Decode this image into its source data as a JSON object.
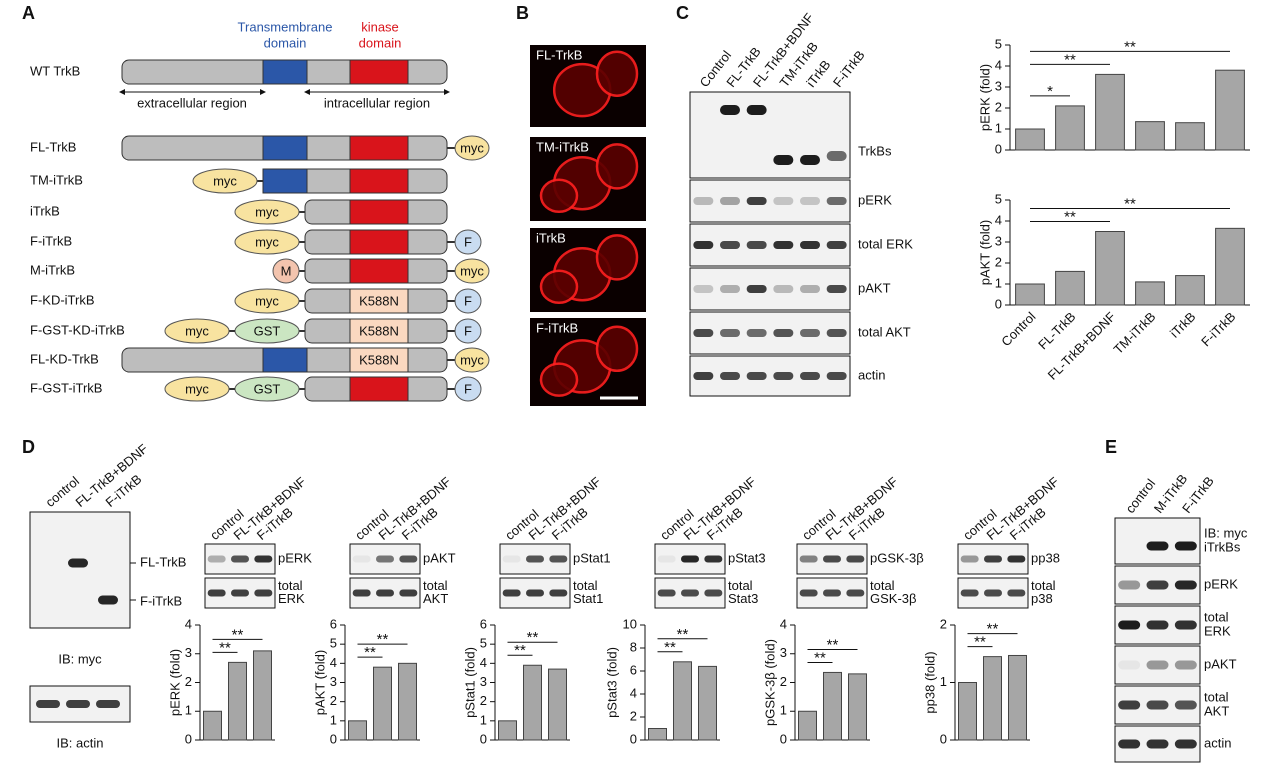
{
  "panel_labels": [
    "A",
    "B",
    "C",
    "D",
    "E"
  ],
  "diagram": {
    "tm_label": [
      "Transmembrane",
      "domain"
    ],
    "kinase_label": [
      "kinase",
      "domain"
    ],
    "wt": "WT TrkB",
    "extracellular": "extracellular region",
    "intracellular": "intracellular region",
    "constructs": [
      {
        "name": "FL-TrkB",
        "right": "myc"
      },
      {
        "name": "TM-iTrkB",
        "left": [
          "myc"
        ]
      },
      {
        "name": "iTrkB",
        "left": [
          "myc"
        ]
      },
      {
        "name": "F-iTrkB",
        "left": [
          "myc"
        ],
        "right": "F"
      },
      {
        "name": "M-iTrkB",
        "left": [
          "M"
        ],
        "right": "myc"
      },
      {
        "name": "F-KD-iTrkB",
        "left": [
          "myc"
        ],
        "kinase": "K588N",
        "right": "F"
      },
      {
        "name": "F-GST-KD-iTrkB",
        "left": [
          "myc",
          "GST"
        ],
        "kinase": "K588N",
        "right": "F"
      },
      {
        "name": "FL-KD-TrkB",
        "kinase": "K588N",
        "right": "myc"
      },
      {
        "name": "F-GST-iTrkB",
        "left": [
          "myc",
          "GST"
        ],
        "right": "F"
      }
    ]
  },
  "images": [
    "FL-TrkB",
    "TM-iTrkB",
    "iTrkB",
    "F-iTrkB"
  ],
  "blot_c": {
    "lanes": [
      "Control",
      "FL-TrkB",
      "FL-TrkB+BDNF",
      "TM-iTrkB",
      "iTrkB",
      "F-iTrkB"
    ],
    "rows": [
      "TrkBs",
      "pERK",
      "total ERK",
      "pAKT",
      "total AKT",
      "actin"
    ]
  },
  "blot_d": {
    "lanes": [
      "control",
      "FL-TrkB+BDNF",
      "F-iTrkB"
    ],
    "bands": [
      "FL-TrkB",
      "F-iTrkB"
    ],
    "ib": [
      "IB: myc",
      "IB: actin"
    ]
  },
  "blot_e": {
    "lanes": [
      "control",
      "M-iTrkB",
      "F-iTrkB"
    ],
    "rows": [
      [
        "IB: myc",
        "iTrkBs"
      ],
      [
        "pERK"
      ],
      [
        "total",
        "ERK"
      ],
      [
        "pAKT"
      ],
      [
        "total",
        "AKT"
      ],
      [
        "actin"
      ]
    ]
  },
  "chart_data": [
    {
      "type": "bar",
      "ylabel": "pERK (fold)",
      "values": [
        1,
        2.1,
        3.6,
        1.35,
        1.3,
        3.8
      ],
      "ylim": [
        0,
        5
      ],
      "yticks": [
        0,
        1,
        2,
        3,
        4,
        5
      ],
      "annotations": [
        "*",
        "**",
        "**"
      ],
      "color": "#a6a6a6"
    },
    {
      "type": "bar",
      "ylabel": "pAKT (fold)",
      "categories": [
        "Control",
        "FL-TrkB",
        "FL-TrkB+BDNF",
        "TM-iTrkB",
        "iTrkB",
        "F-iTrkB"
      ],
      "values": [
        1,
        1.6,
        3.5,
        1.1,
        1.4,
        3.65
      ],
      "ylim": [
        0,
        5
      ],
      "yticks": [
        0,
        1,
        2,
        3,
        4,
        5
      ],
      "annotations": [
        "**",
        "**"
      ],
      "color": "#a6a6a6"
    },
    {
      "type": "bar",
      "ylabel": "pERK (fold)",
      "categories": [
        "control",
        "FL-TrkB+BDNF",
        "F-iTrkB"
      ],
      "values": [
        1,
        2.7,
        3.1
      ],
      "ylim": [
        0,
        4
      ],
      "yticks": [
        0,
        1,
        2,
        3,
        4
      ],
      "annotations": [
        "**",
        "**"
      ],
      "blot_labels": [
        [
          "pERK"
        ],
        [
          "total",
          "ERK"
        ]
      ],
      "color": "#a6a6a6"
    },
    {
      "type": "bar",
      "ylabel": "pAKT (fold)",
      "categories": [
        "control",
        "FL-TrkB+BDNF",
        "F-iTrkB"
      ],
      "values": [
        1,
        3.8,
        4
      ],
      "ylim": [
        0,
        6
      ],
      "yticks": [
        0,
        1,
        2,
        3,
        4,
        5,
        6
      ],
      "annotations": [
        "**",
        "**"
      ],
      "blot_labels": [
        [
          "pAKT"
        ],
        [
          "total",
          "AKT"
        ]
      ],
      "color": "#a6a6a6"
    },
    {
      "type": "bar",
      "ylabel": "pStat1 (fold)",
      "categories": [
        "control",
        "FL-TrkB+BDNF",
        "F-iTrkB"
      ],
      "values": [
        1,
        3.9,
        3.7
      ],
      "ylim": [
        0,
        6
      ],
      "yticks": [
        0,
        1,
        2,
        3,
        4,
        5,
        6
      ],
      "annotations": [
        "**",
        "**"
      ],
      "blot_labels": [
        [
          "pStat1"
        ],
        [
          "total",
          "Stat1"
        ]
      ],
      "color": "#a6a6a6"
    },
    {
      "type": "bar",
      "ylabel": "pStat3 (fold)",
      "categories": [
        "control",
        "FL-TrkB+BDNF",
        "F-iTrkB"
      ],
      "values": [
        1,
        6.8,
        6.4
      ],
      "ylim": [
        0,
        10
      ],
      "yticks": [
        0,
        2,
        4,
        6,
        8,
        10
      ],
      "annotations": [
        "**",
        "**"
      ],
      "blot_labels": [
        [
          "pStat3"
        ],
        [
          "total",
          "Stat3"
        ]
      ],
      "color": "#a6a6a6"
    },
    {
      "type": "bar",
      "ylabel": "pGSK-3β (fold)",
      "categories": [
        "control",
        "FL-TrkB+BDNF",
        "F-iTrkB"
      ],
      "values": [
        1,
        2.35,
        2.3
      ],
      "ylim": [
        0,
        4
      ],
      "yticks": [
        0,
        1,
        2,
        3,
        4
      ],
      "annotations": [
        "**",
        "**"
      ],
      "blot_labels": [
        [
          "pGSK-3β"
        ],
        [
          "total",
          "GSK-3β"
        ]
      ],
      "color": "#a6a6a6"
    },
    {
      "type": "bar",
      "ylabel": "pp38 (fold)",
      "categories": [
        "control",
        "FL-TrkB+BDNF",
        "F-iTrkB"
      ],
      "values": [
        1,
        1.45,
        1.47
      ],
      "ylim": [
        0,
        2
      ],
      "yticks": [
        0,
        1,
        2
      ],
      "annotations": [
        "**",
        "**"
      ],
      "blot_labels": [
        [
          "pp38"
        ],
        [
          "total",
          "p38"
        ]
      ],
      "color": "#a6a6a6"
    }
  ]
}
